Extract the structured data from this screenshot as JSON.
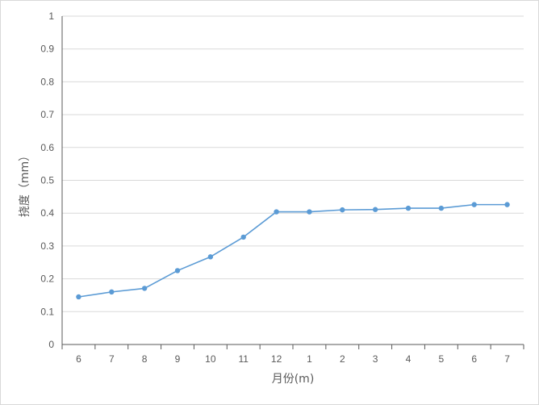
{
  "chart_data": {
    "type": "line",
    "title": "",
    "xlabel": "月份(m)",
    "ylabel": "挠度（mm）",
    "categories": [
      "6",
      "7",
      "8",
      "9",
      "10",
      "11",
      "12",
      "1",
      "2",
      "3",
      "4",
      "5",
      "6",
      "7"
    ],
    "series": [
      {
        "values": [
          0.145,
          0.16,
          0.171,
          0.225,
          0.267,
          0.327,
          0.404,
          0.404,
          0.41,
          0.411,
          0.415,
          0.415,
          0.426,
          0.426
        ]
      }
    ],
    "ylim": [
      0,
      1
    ],
    "yticks": [
      "0",
      "0.1",
      "0.2",
      "0.3",
      "0.4",
      "0.5",
      "0.6",
      "0.7",
      "0.8",
      "0.9",
      "1"
    ],
    "grid": true,
    "legend": "none",
    "colors": {
      "line": "#5b9bd5",
      "grid": "#d9d9d9",
      "axis": "#595959",
      "text": "#595959"
    }
  }
}
